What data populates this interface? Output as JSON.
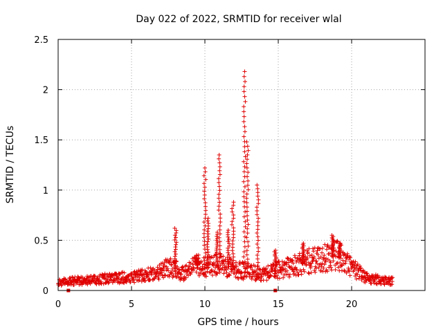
{
  "chart_data": {
    "type": "scatter",
    "title": "Day 022 of 2022, SRMTID for receiver wlal",
    "xlabel": "GPS time / hours",
    "ylabel": "SRMTID / TECUs",
    "xlim": [
      0,
      25
    ],
    "ylim": [
      0,
      2.5
    ],
    "xticks": [
      0,
      5,
      10,
      15,
      20
    ],
    "xtick_labels": [
      "0",
      "5",
      "10",
      "15",
      "20"
    ],
    "yticks": [
      0,
      0.5,
      1,
      1.5,
      2,
      2.5
    ],
    "ytick_labels": [
      "0",
      "0.5",
      "1",
      "1.5",
      "2",
      "2.5"
    ],
    "grid": true,
    "marker": "+",
    "color": "#e00000",
    "gap_markers_x": [
      0.7,
      14.8
    ],
    "series": [
      {
        "name": "SRMTID",
        "baseline_profile": {
          "x": [
            0,
            1,
            2,
            3,
            4,
            5,
            6,
            7,
            7.5,
            8,
            8.5,
            9,
            9.5,
            10,
            11,
            12,
            13,
            14,
            15,
            16,
            17,
            18,
            19,
            20,
            21,
            22,
            22.8
          ],
          "y": [
            0.08,
            0.09,
            0.1,
            0.11,
            0.12,
            0.13,
            0.15,
            0.18,
            0.22,
            0.2,
            0.16,
            0.2,
            0.25,
            0.22,
            0.25,
            0.2,
            0.18,
            0.16,
            0.2,
            0.23,
            0.28,
            0.3,
            0.35,
            0.22,
            0.12,
            0.1,
            0.09
          ]
        },
        "peaks": [
          {
            "x": 8.0,
            "y": 0.62
          },
          {
            "x": 9.5,
            "y": 0.32
          },
          {
            "x": 10.0,
            "y": 1.22
          },
          {
            "x": 10.2,
            "y": 0.72
          },
          {
            "x": 10.8,
            "y": 0.58
          },
          {
            "x": 11.0,
            "y": 1.35
          },
          {
            "x": 11.6,
            "y": 0.6
          },
          {
            "x": 11.9,
            "y": 0.88
          },
          {
            "x": 12.7,
            "y": 2.18
          },
          {
            "x": 12.9,
            "y": 1.48
          },
          {
            "x": 13.6,
            "y": 1.05
          },
          {
            "x": 14.8,
            "y": 0.4
          },
          {
            "x": 16.7,
            "y": 0.47
          },
          {
            "x": 18.7,
            "y": 0.55
          },
          {
            "x": 19.2,
            "y": 0.47
          }
        ]
      }
    ]
  }
}
